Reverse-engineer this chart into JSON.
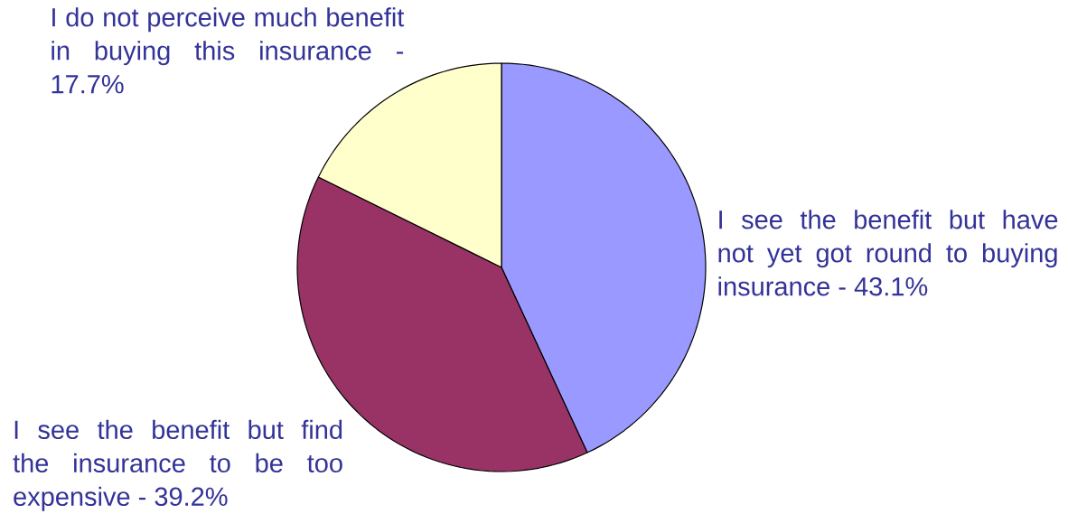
{
  "chart_data": {
    "type": "pie",
    "categories": [
      "I see the benefit but have not yet got round to buying insurance - 43.1%",
      "I see the benefit but find the insurance to be too expensive - 39.2%",
      "I do not perceive much benefit in buying this insurance - 17.7%"
    ],
    "values": [
      43.1,
      39.2,
      17.7
    ],
    "colors": [
      "#9999ff",
      "#993366",
      "#ffffcc"
    ]
  }
}
